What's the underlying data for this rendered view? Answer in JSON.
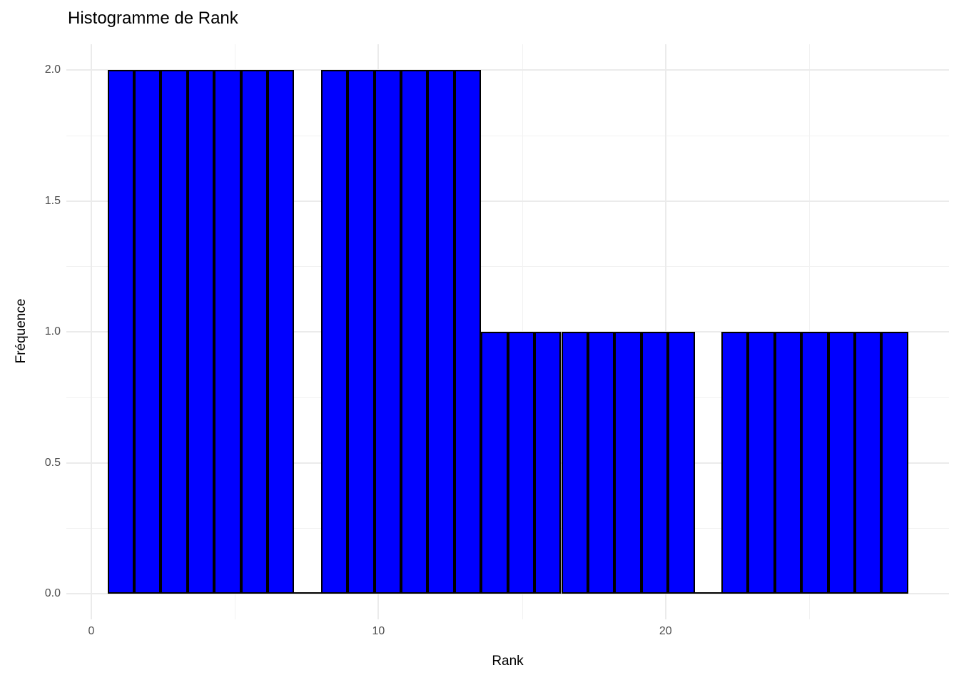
{
  "title": "Histogramme de Rank",
  "chart_data": {
    "type": "bar",
    "subtype": "histogram",
    "title": "Histogramme de Rank",
    "xlabel": "Rank",
    "ylabel": "Fréquence",
    "bin_start": 0.559,
    "bin_width": 0.9297,
    "counts": [
      2,
      2,
      2,
      2,
      2,
      2,
      2,
      0,
      2,
      2,
      2,
      2,
      2,
      2,
      1,
      1,
      1,
      1,
      1,
      1,
      1,
      1,
      0,
      1,
      1,
      1,
      1,
      1,
      1,
      1
    ],
    "x_major_ticks": [
      0,
      10,
      20
    ],
    "x_tick_labels": [
      "0",
      "10",
      "20"
    ],
    "x_minor_ticks": [
      5,
      15,
      25
    ],
    "y_major_ticks": [
      0,
      0.5,
      1,
      1.5,
      2
    ],
    "y_tick_labels": [
      "0.0",
      "0.5",
      "1.0",
      "1.5",
      "2.0"
    ],
    "y_minor_ticks": [
      0.25,
      0.75,
      1.25,
      1.75
    ],
    "xlim": [
      -0.87,
      29.87
    ],
    "ylim": [
      -0.098,
      2.098
    ],
    "grid": "on",
    "legend": "none",
    "bar_fill": "#0000ff",
    "bar_stroke": "#000000",
    "grid_major_color": "#ebebeb",
    "grid_minor_color": "#f2f2f2",
    "tick_label_color": "#4d4d4d",
    "text_color": "#000000",
    "background": "#ffffff"
  }
}
